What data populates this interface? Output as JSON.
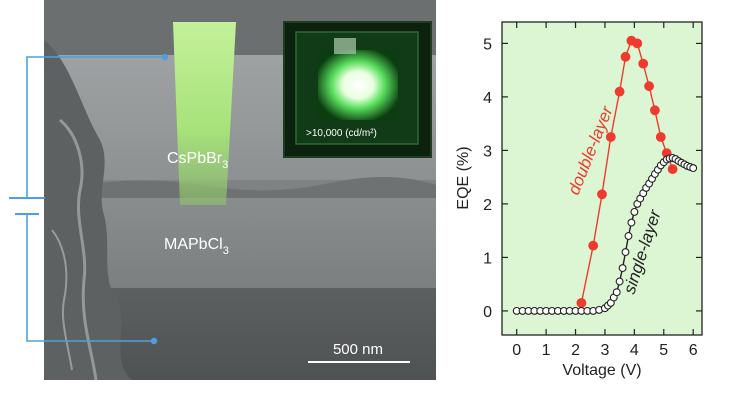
{
  "panel_a": {
    "layer_top_label": "CsPbBr",
    "layer_top_sub": "3",
    "layer_bottom_label": "MAPbCl",
    "layer_bottom_sub": "3",
    "scale_bar_label": "500 nm",
    "inset_label": ">10,000 (cd/m²)",
    "colors": {
      "wire": "#4f9fe0",
      "electrode": "#b8ee8c",
      "led_glow": "#35c23a"
    }
  },
  "chart_data": {
    "type": "line",
    "xlabel": "Voltage (V)",
    "ylabel": "EQE (%)",
    "xlim": [
      -0.5,
      6.3
    ],
    "ylim": [
      -0.45,
      5.4
    ],
    "xticks": [
      0,
      1,
      2,
      3,
      4,
      5,
      6
    ],
    "yticks": [
      0,
      1,
      2,
      3,
      4,
      5
    ],
    "background": "#dcf5d2",
    "series": [
      {
        "name": "double-layer",
        "marker": "filled",
        "color": "#ee3b2e",
        "x": [
          2.2,
          2.6,
          2.9,
          3.2,
          3.5,
          3.7,
          3.9,
          4.1,
          4.3,
          4.5,
          4.7,
          4.9,
          5.1,
          5.3
        ],
        "y": [
          0.15,
          1.22,
          2.18,
          3.25,
          4.1,
          4.75,
          5.05,
          5.0,
          4.62,
          4.2,
          3.75,
          3.25,
          2.95,
          2.65
        ]
      },
      {
        "name": "single-layer",
        "marker": "open",
        "color": "#222222",
        "x": [
          0,
          0.2,
          0.4,
          0.6,
          0.8,
          1.0,
          1.2,
          1.4,
          1.6,
          1.8,
          2.0,
          2.2,
          2.4,
          2.6,
          2.8,
          3.0,
          3.1,
          3.2,
          3.3,
          3.4,
          3.5,
          3.6,
          3.7,
          3.8,
          3.9,
          4.0,
          4.1,
          4.2,
          4.3,
          4.4,
          4.5,
          4.6,
          4.7,
          4.8,
          4.9,
          5.0,
          5.1,
          5.2,
          5.3,
          5.4,
          5.5,
          5.6,
          5.7,
          5.8,
          5.9,
          6.0
        ],
        "y": [
          0,
          0,
          0,
          0,
          0,
          0,
          0,
          0,
          0,
          0,
          0,
          0,
          0,
          0,
          0.02,
          0.05,
          0.1,
          0.15,
          0.25,
          0.35,
          0.55,
          0.8,
          1.1,
          1.4,
          1.65,
          1.85,
          2.0,
          2.1,
          2.2,
          2.3,
          2.38,
          2.47,
          2.56,
          2.64,
          2.72,
          2.78,
          2.83,
          2.85,
          2.86,
          2.84,
          2.8,
          2.77,
          2.74,
          2.71,
          2.69,
          2.67
        ]
      }
    ]
  }
}
